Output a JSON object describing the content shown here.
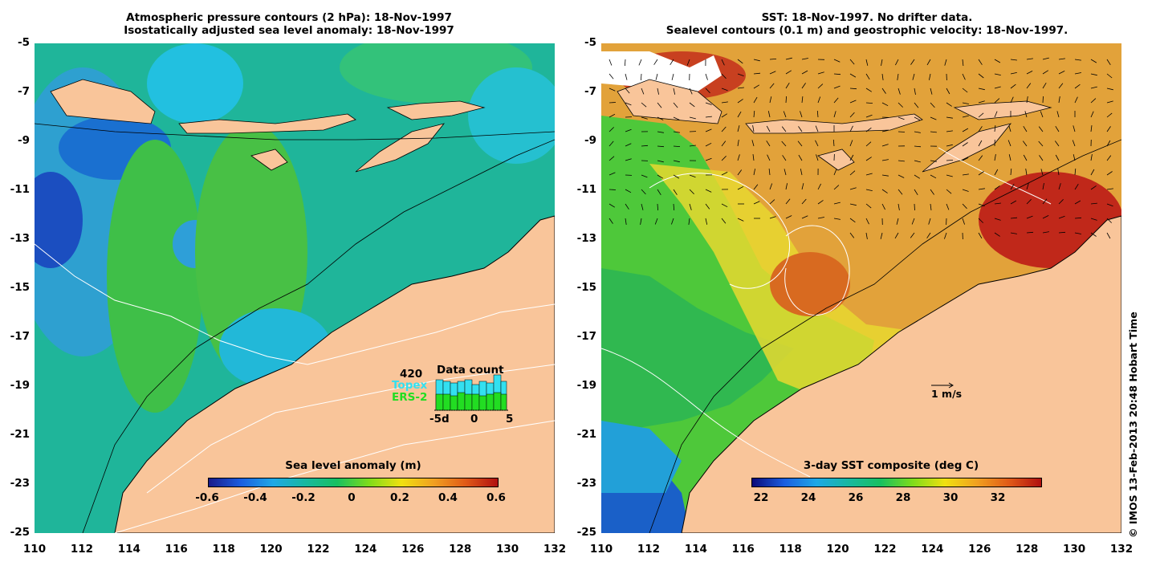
{
  "left_panel": {
    "title_line1": "Atmospheric pressure contours (2 hPa): 18-Nov-1997",
    "title_line2": "Isostatically adjusted sea level anomaly: 18-Nov-1997",
    "colorbar": {
      "title": "Sea level anomaly (m)",
      "ticks": [
        "-0.6",
        "-0.4",
        "-0.2",
        "0",
        "0.2",
        "0.4",
        "0.6"
      ],
      "range": [
        -0.6,
        0.6
      ]
    },
    "data_count": {
      "title": "Data count",
      "max_label": "420",
      "series_1": "Topex",
      "series_2": "ERS-2",
      "x_ticks": [
        "-5d",
        "0",
        "5"
      ],
      "topex_color": "#33e0f0",
      "ers2_color": "#22dd22"
    }
  },
  "right_panel": {
    "title_line1": "SST: 18-Nov-1997. No drifter data.",
    "title_line2": "Sealevel contours (0.1 m) and geostrophic velocity: 18-Nov-1997.",
    "colorbar": {
      "title": "3-day SST composite (deg C)",
      "ticks": [
        "22",
        "24",
        "26",
        "28",
        "30",
        "32"
      ],
      "range": [
        20.6,
        32.8
      ]
    },
    "velocity_scale": "1 m/s"
  },
  "axes": {
    "latitudes": [
      "-5",
      "-7",
      "-9",
      "-11",
      "-13",
      "-15",
      "-17",
      "-19",
      "-21",
      "-23",
      "-25"
    ],
    "longitudes": [
      "110",
      "112",
      "114",
      "116",
      "118",
      "120",
      "122",
      "124",
      "126",
      "128",
      "130",
      "132"
    ]
  },
  "copyright": "© IMOS 13-Feb-2013 20:48 Hobart Time",
  "colors": {
    "land": "#f9c59a",
    "ocean_left": "#1fb59a",
    "ocean_right_warm": "#e0902a",
    "ocean_right_cool": "#3ec23a"
  }
}
